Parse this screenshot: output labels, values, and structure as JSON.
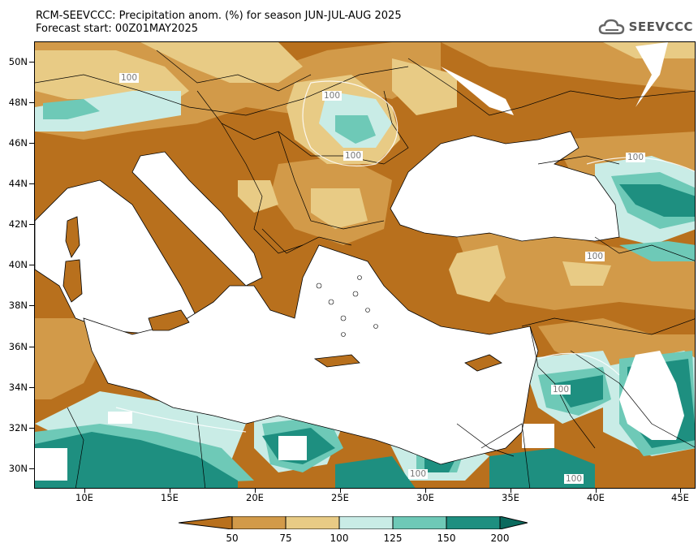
{
  "title": {
    "line1": "RCM-SEEVCCC: Precipitation anom. (%) for season JUN-JUL-AUG 2025",
    "line2": "Forecast start: 00Z01MAY2025"
  },
  "logo": {
    "text": "SEEVCCC",
    "icon": "cloud-icon"
  },
  "axes": {
    "y_labels": [
      "50N",
      "48N",
      "46N",
      "44N",
      "42N",
      "40N",
      "38N",
      "36N",
      "34N",
      "32N",
      "30N"
    ],
    "x_labels": [
      "10E",
      "15E",
      "20E",
      "25E",
      "30E",
      "35E",
      "40E",
      "45E"
    ]
  },
  "contour_labels": [
    "100",
    "100",
    "100",
    "100",
    "100",
    "100",
    "100",
    "100"
  ],
  "colorbar": {
    "labels": [
      "50",
      "75",
      "100",
      "125",
      "150",
      "200"
    ],
    "colors": [
      "#b8701d",
      "#d29a49",
      "#e8cb85",
      "#c9ece6",
      "#6ec9b7",
      "#1e8f80",
      "#0b6a5e"
    ]
  },
  "colors": {
    "very_dry": "#b8701d",
    "dry": "#d29a49",
    "normal_low": "#e8cb85",
    "normal_high": "#c9ece6",
    "wet": "#6ec9b7",
    "very_wet": "#1e8f80",
    "sea": "#ffffff"
  }
}
